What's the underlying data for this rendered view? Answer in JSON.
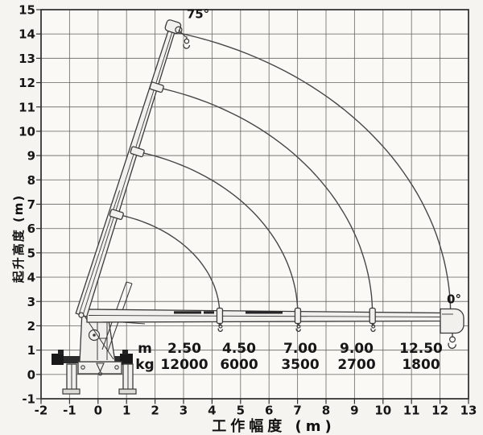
{
  "chart_data": {
    "type": "line",
    "title": "",
    "xlabel": "工作幅度 (m)",
    "ylabel": "起升高度 (m)",
    "xlim": [
      -2,
      13
    ],
    "ylim": [
      -1,
      15
    ],
    "x_ticks": [
      -2,
      -1,
      0,
      1,
      2,
      3,
      4,
      5,
      6,
      7,
      8,
      9,
      10,
      11,
      12,
      13
    ],
    "y_ticks": [
      -1,
      0,
      1,
      2,
      3,
      4,
      5,
      6,
      7,
      8,
      9,
      10,
      11,
      12,
      13,
      14,
      15
    ],
    "grid": true,
    "legend": false,
    "annotations": {
      "boom_max_angle": "75°",
      "boom_min_angle": "0°"
    },
    "load_table": {
      "row_labels": [
        "m",
        "kg"
      ],
      "radius_m": [
        "2.50",
        "4.50",
        "7.00",
        "9.00",
        "12.50"
      ],
      "capacity_kg": [
        "12000",
        "6000",
        "3500",
        "2700",
        "1800"
      ]
    },
    "crane": {
      "pivot": [
        -0.59,
        2.44
      ],
      "boom75_tip": [
        2.63,
        14.3
      ],
      "boom0_tip_x": 12.37,
      "boom0_y": 2.45,
      "section_joints_75": [
        [
          0.65,
          6.58
        ],
        [
          1.38,
          9.16
        ],
        [
          2.06,
          11.81
        ]
      ],
      "section_ends_0_x": [
        4.27,
        7.01,
        9.63
      ]
    },
    "hook_paths": [
      {
        "start": [
          0.65,
          6.58
        ],
        "end": [
          4.27,
          2.01
        ]
      },
      {
        "start": [
          1.38,
          9.16
        ],
        "end": [
          7.01,
          2.05
        ]
      },
      {
        "start": [
          2.06,
          11.81
        ],
        "end": [
          9.63,
          2.05
        ]
      },
      {
        "start": [
          2.82,
          14.06
        ],
        "end": [
          12.37,
          2.61
        ]
      }
    ]
  }
}
